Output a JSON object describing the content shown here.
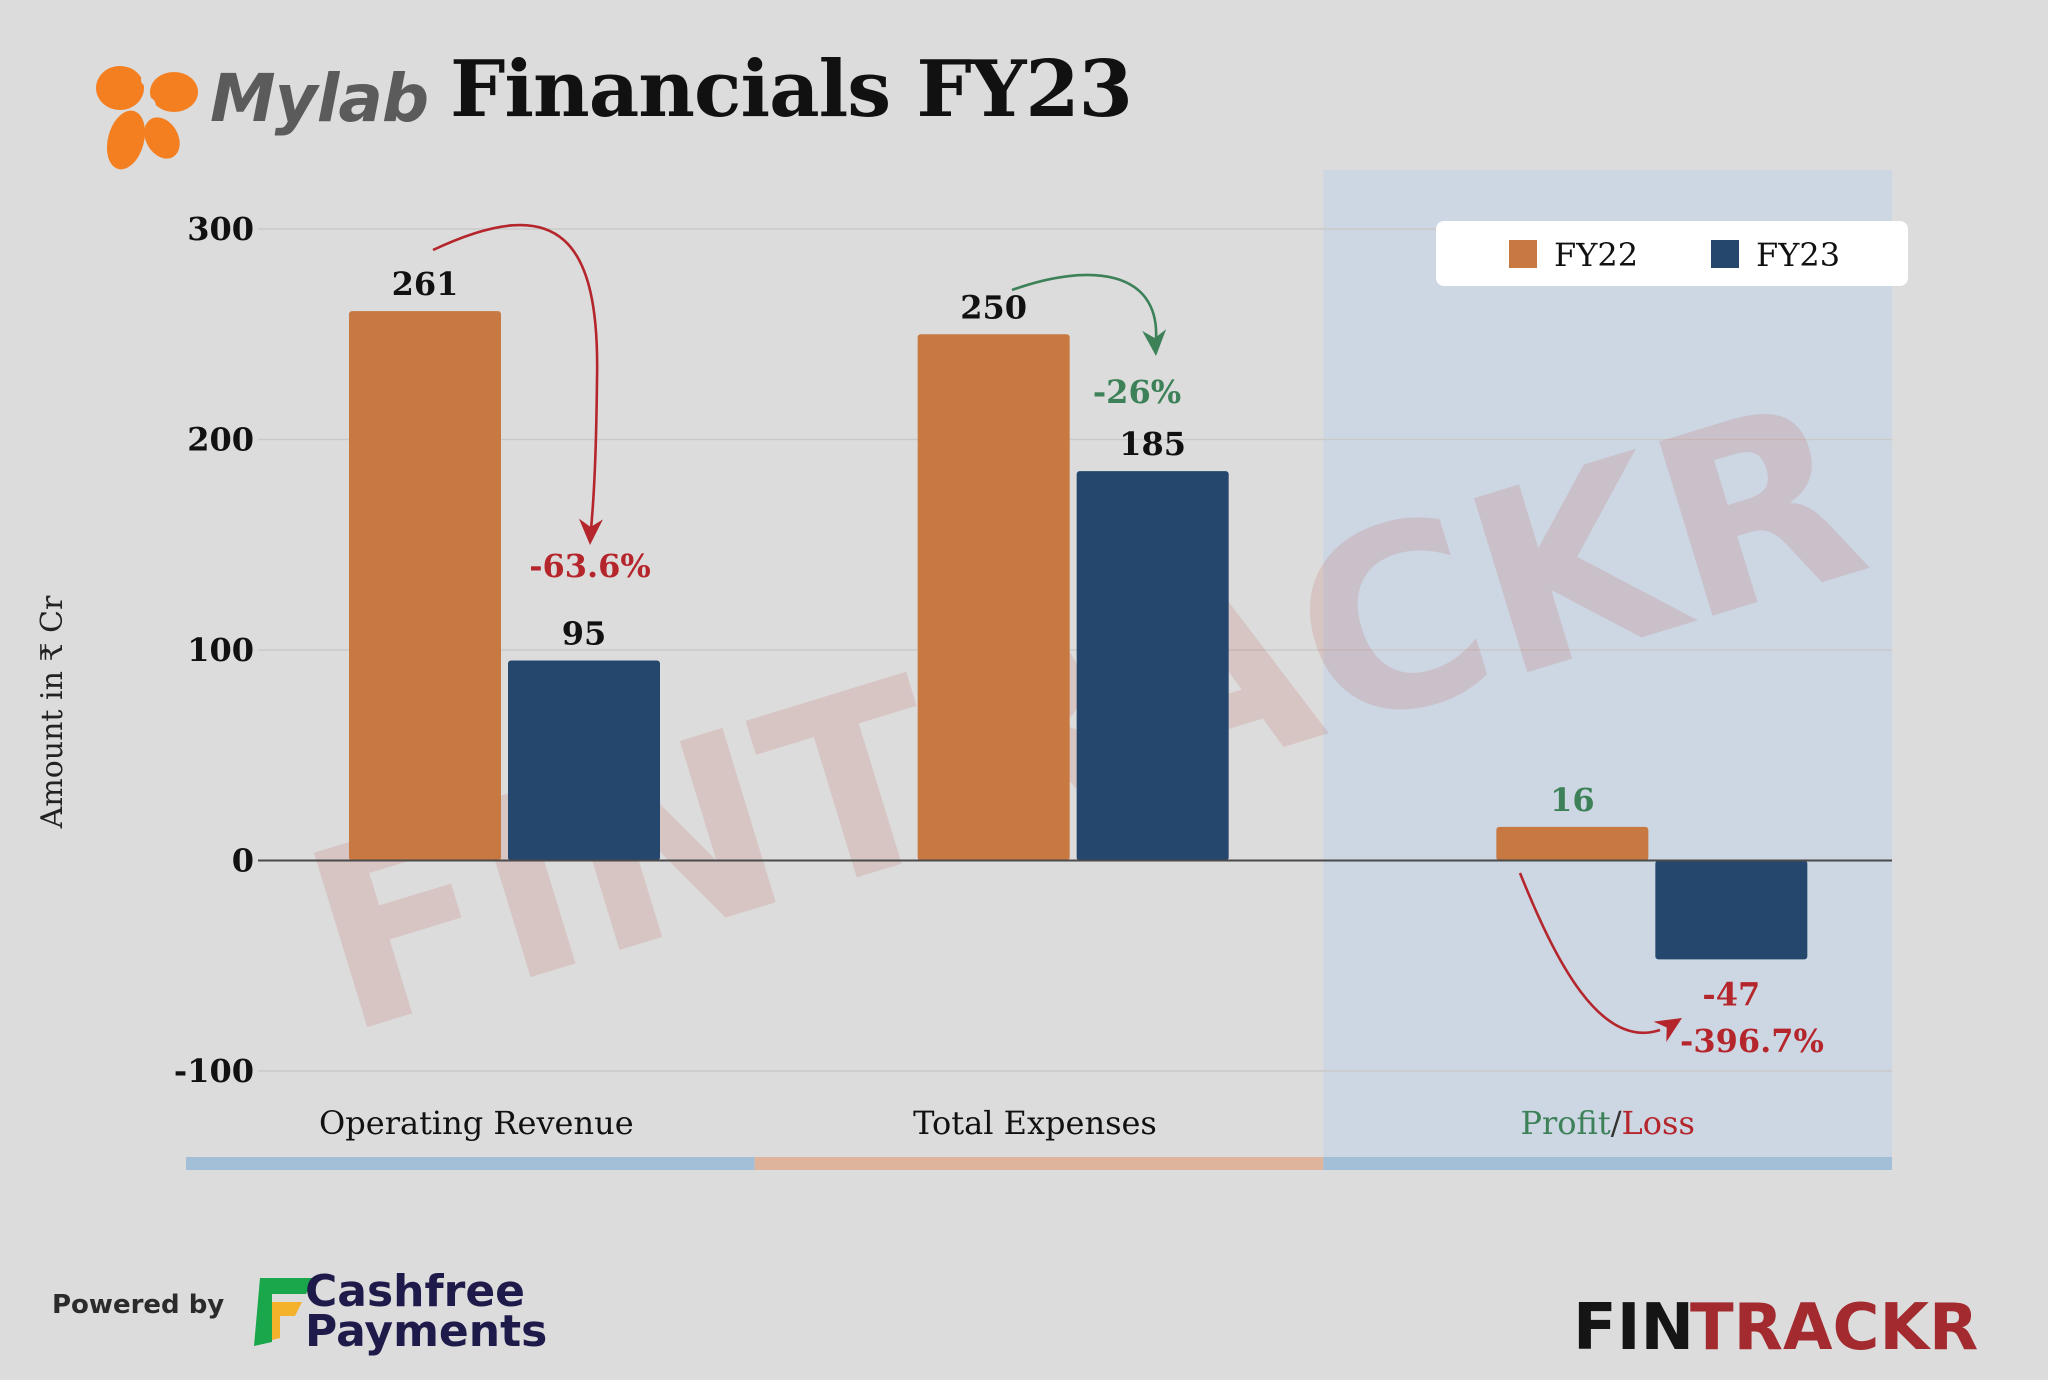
{
  "header": {
    "brand_name": "Mylab",
    "title": "Financials FY23"
  },
  "chart_data": {
    "type": "bar",
    "ylabel": "Amount in ₹ Cr",
    "ylim": [
      -100,
      300
    ],
    "yticks": [
      300,
      200,
      100,
      0,
      -100
    ],
    "grid": true,
    "legend_position": "top-right",
    "categories": [
      "Operating Revenue",
      "Total Expenses",
      "Profit/Loss"
    ],
    "category_label_parts": {
      "profit": "Profit",
      "separator": "/",
      "loss": "Loss"
    },
    "series": [
      {
        "name": "FY22",
        "color": "#c87841",
        "values": [
          261,
          250,
          16
        ]
      },
      {
        "name": "FY23",
        "color": "#25476d",
        "values": [
          95,
          185,
          -47
        ]
      }
    ],
    "data_labels": {
      "FY22": [
        "261",
        "250",
        "16"
      ],
      "FY23": [
        "95",
        "185",
        "-47"
      ]
    },
    "annotations": [
      {
        "category": "Operating Revenue",
        "text": "-63.6%",
        "color": "#b5262c"
      },
      {
        "category": "Total Expenses",
        "text": "-26%",
        "color": "#3d8158"
      },
      {
        "category": "Profit/Loss",
        "text": "-396.7%",
        "color": "#b5262c"
      }
    ],
    "category_band_colors": [
      "#a3bfd8",
      "#deb49c",
      "#a3bfd8"
    ],
    "highlight_color": "#c7d6e5"
  },
  "watermark": "FINTRACKR",
  "footer": {
    "powered_by": "Powered by",
    "sponsor_line1": "Cashfree",
    "sponsor_line2": "Payments",
    "fintrackr_left": "FIN",
    "fintrackr_right": "TRACKR"
  }
}
